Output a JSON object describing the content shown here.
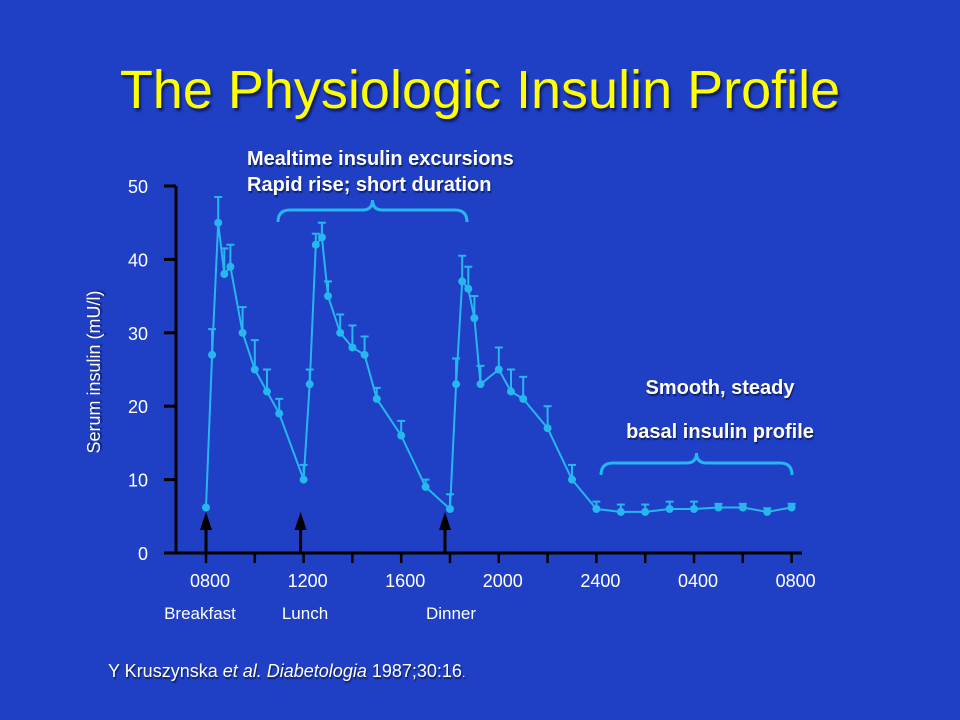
{
  "slide": {
    "title": "The Physiologic Insulin Profile",
    "note_meal_line1": "Mealtime insulin excursions",
    "note_meal_line2": "Rapid rise; short duration",
    "note_basal_line1": "Smooth, steady",
    "note_basal_line2": "basal insulin profile",
    "cite_author": "Y Kruszynska ",
    "cite_etal": "et al.",
    "cite_journal": "Diabetologia",
    "cite_ref": " 1987;30:16",
    "cite_dot": "."
  },
  "colors": {
    "background": "#1f3fc4",
    "title": "#ffff00",
    "series": "#26b6f0",
    "axis": "#000000",
    "text": "#ffffff"
  },
  "chart_data": {
    "type": "line",
    "ylabel": "Serum insulin (mU/l)",
    "xlabel": "",
    "ylim": [
      0,
      50
    ],
    "yticks": [
      0,
      10,
      20,
      30,
      40,
      50
    ],
    "xtick_labels": [
      "0800",
      "1200",
      "1600",
      "2000",
      "2400",
      "0400",
      "0800"
    ],
    "meals": [
      "Breakfast",
      "Lunch",
      "Dinner"
    ],
    "series": [
      {
        "points": [
          {
            "t": "08:00",
            "y": 6.2
          },
          {
            "t": "08:15",
            "y": 27
          },
          {
            "t": "08:30",
            "y": 45
          },
          {
            "t": "08:45",
            "y": 38
          },
          {
            "t": "09:00",
            "y": 39
          },
          {
            "t": "09:30",
            "y": 30
          },
          {
            "t": "10:00",
            "y": 25
          },
          {
            "t": "10:30",
            "y": 22
          },
          {
            "t": "11:00",
            "y": 19
          },
          {
            "t": "12:00",
            "y": 10
          },
          {
            "t": "12:15",
            "y": 23
          },
          {
            "t": "12:30",
            "y": 42
          },
          {
            "t": "12:45",
            "y": 43
          },
          {
            "t": "13:00",
            "y": 35
          },
          {
            "t": "13:30",
            "y": 30
          },
          {
            "t": "14:00",
            "y": 28
          },
          {
            "t": "14:30",
            "y": 27
          },
          {
            "t": "15:00",
            "y": 21
          },
          {
            "t": "16:00",
            "y": 16
          },
          {
            "t": "17:00",
            "y": 9
          },
          {
            "t": "18:00",
            "y": 6
          },
          {
            "t": "18:15",
            "y": 23
          },
          {
            "t": "18:30",
            "y": 37
          },
          {
            "t": "18:45",
            "y": 36
          },
          {
            "t": "19:00",
            "y": 32
          },
          {
            "t": "19:15",
            "y": 23
          },
          {
            "t": "20:00",
            "y": 25
          },
          {
            "t": "20:30",
            "y": 22
          },
          {
            "t": "21:00",
            "y": 21
          },
          {
            "t": "22:00",
            "y": 17
          },
          {
            "t": "23:00",
            "y": 10
          },
          {
            "t": "00:00",
            "y": 6
          },
          {
            "t": "01:00",
            "y": 5.6
          },
          {
            "t": "02:00",
            "y": 5.6
          },
          {
            "t": "03:00",
            "y": 6
          },
          {
            "t": "04:00",
            "y": 6
          },
          {
            "t": "05:00",
            "y": 6.2
          },
          {
            "t": "06:00",
            "y": 6.2
          },
          {
            "t": "07:00",
            "y": 5.6
          },
          {
            "t": "08:00",
            "y": 6.2
          }
        ],
        "error_up": [
          0,
          3.5,
          3.5,
          3.5,
          3,
          3.5,
          4,
          3,
          2,
          2,
          2,
          1.5,
          2,
          2,
          2.5,
          3,
          2.5,
          1.5,
          2,
          1,
          2,
          3.5,
          3.5,
          3,
          3,
          2.5,
          3,
          3,
          3,
          3,
          2,
          1,
          1,
          1,
          1,
          1,
          0.5,
          0.5,
          0.5,
          0.5
        ]
      }
    ]
  }
}
